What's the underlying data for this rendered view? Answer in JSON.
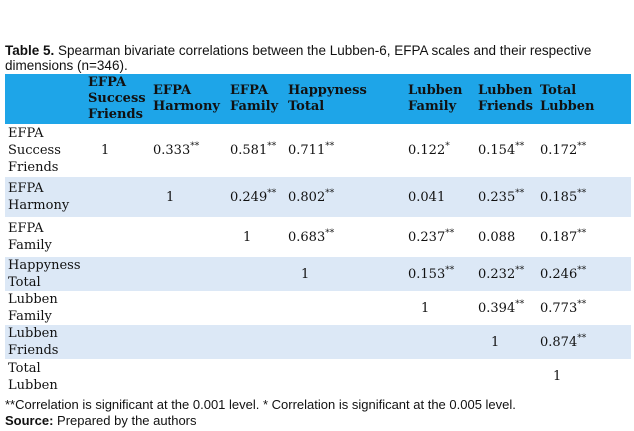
{
  "caption": {
    "label": "Table 5.",
    "text": "Spearman bivariate correlations between the Lubben-6, EFPA scales and their respective dimensions (n=346)."
  },
  "table": {
    "header": [
      "EFPA Success Friends",
      "EFPA Harmony",
      "EFPA Family",
      "Happyness Total",
      "Lubben Family",
      "Lubben Friends",
      "Total Lubben"
    ],
    "rows": [
      {
        "label": "EFPA Success Friends",
        "cells": [
          {
            "text": "1"
          },
          {
            "text": "0.333",
            "sup": "**"
          },
          {
            "text": "0.581",
            "sup": "**"
          },
          {
            "text": "0.711",
            "sup": "**"
          },
          {
            "text": "0.122",
            "sup": "*"
          },
          {
            "text": "0.154",
            "sup": "**"
          },
          {
            "text": "0.172",
            "sup": "**"
          }
        ]
      },
      {
        "label": "EFPA Harmony",
        "cells": [
          null,
          {
            "text": "1"
          },
          {
            "text": "0.249",
            "sup": "**"
          },
          {
            "text": "0.802",
            "sup": "**"
          },
          {
            "text": "0.041"
          },
          {
            "text": "0.235",
            "sup": "**"
          },
          {
            "text": "0.185",
            "sup": "**"
          }
        ]
      },
      {
        "label": "EFPA Family",
        "cells": [
          null,
          null,
          {
            "text": "1"
          },
          {
            "text": "0.683",
            "sup": "**"
          },
          {
            "text": "0.237",
            "sup": "**"
          },
          {
            "text": "0.088"
          },
          {
            "text": "0.187",
            "sup": "**"
          }
        ]
      },
      {
        "label": "Happyness Total",
        "cells": [
          null,
          null,
          null,
          {
            "text": "1"
          },
          {
            "text": "0.153",
            "sup": "**"
          },
          {
            "text": "0.232",
            "sup": "**"
          },
          {
            "text": "0.246",
            "sup": "**"
          }
        ]
      },
      {
        "label": "Lubben Family",
        "cells": [
          null,
          null,
          null,
          null,
          {
            "text": "1"
          },
          {
            "text": "0.394",
            "sup": "**"
          },
          {
            "text": "0.773",
            "sup": "**"
          }
        ]
      },
      {
        "label": "Lubben Friends",
        "cells": [
          null,
          null,
          null,
          null,
          null,
          {
            "text": "1"
          },
          {
            "text": "0.874",
            "sup": "**"
          }
        ]
      },
      {
        "label": "Total Lubben",
        "cells": [
          null,
          null,
          null,
          null,
          null,
          null,
          {
            "text": "1"
          }
        ]
      }
    ]
  },
  "footnote": "**Correlation is significant at the 0.001 level. * Correlation is significant at the 0.005 level.",
  "source": {
    "label": "Source:",
    "text": "Prepared by the authors"
  }
}
